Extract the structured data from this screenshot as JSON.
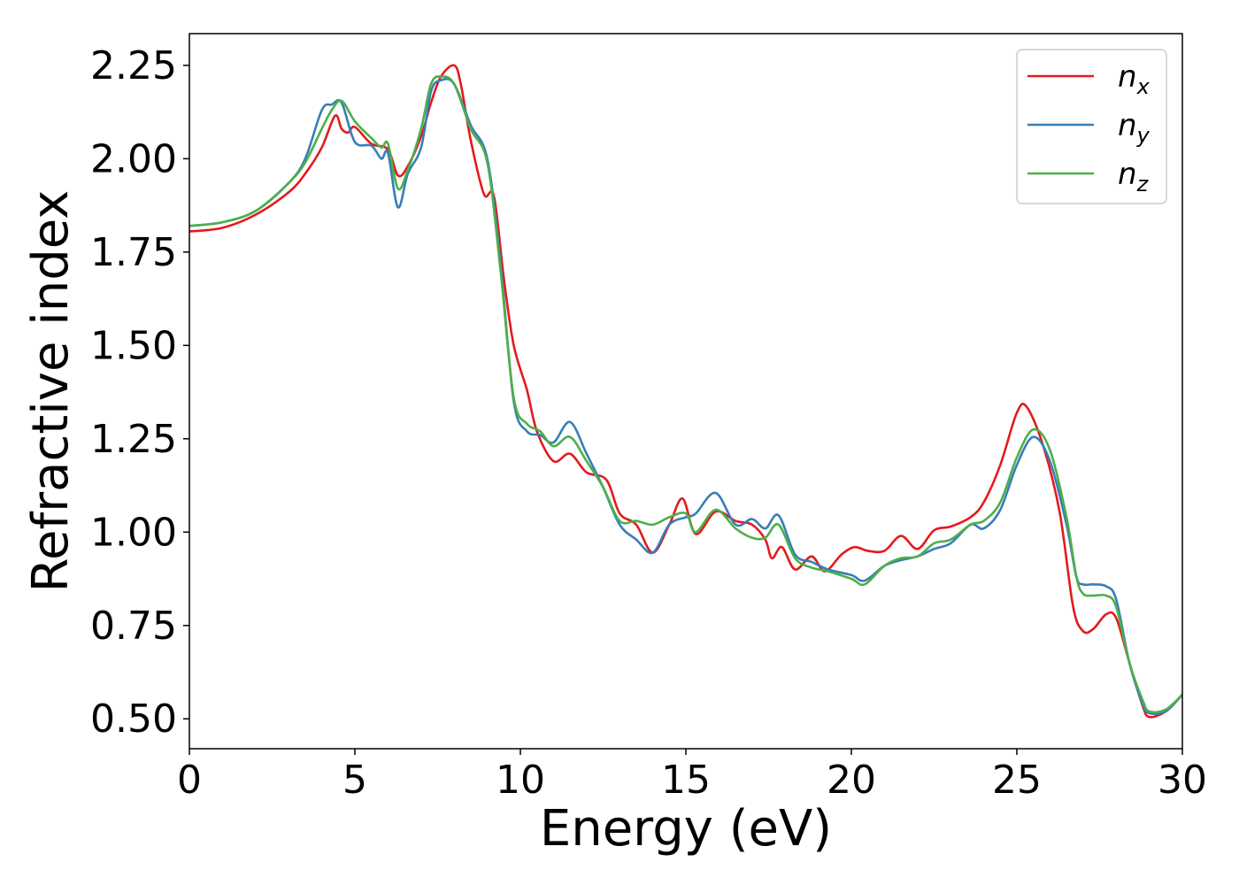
{
  "chart_data": {
    "type": "line",
    "xlabel": "Energy (eV)",
    "ylabel": "Refractive index",
    "xlim": [
      0,
      30
    ],
    "ylim": [
      0.42,
      2.335
    ],
    "xticks": [
      0,
      5,
      10,
      15,
      20,
      25,
      30
    ],
    "xtick_labels": [
      "0",
      "5",
      "10",
      "15",
      "20",
      "25",
      "30"
    ],
    "yticks": [
      0.5,
      0.75,
      1.0,
      1.25,
      1.5,
      1.75,
      2.0,
      2.25
    ],
    "ytick_labels": [
      "0.50",
      "0.75",
      "1.00",
      "1.25",
      "1.50",
      "1.75",
      "2.00",
      "2.25"
    ],
    "grid": false,
    "legend_position": "top-right",
    "series": [
      {
        "name": "n",
        "subscript": "x",
        "color": "#e41a1c",
        "points": [
          [
            0,
            1.805
          ],
          [
            1,
            1.815
          ],
          [
            2,
            1.85
          ],
          [
            3,
            1.91
          ],
          [
            3.5,
            1.96
          ],
          [
            4,
            2.03
          ],
          [
            4.4,
            2.115
          ],
          [
            4.6,
            2.08
          ],
          [
            4.8,
            2.07
          ],
          [
            5,
            2.085
          ],
          [
            5.5,
            2.04
          ],
          [
            6,
            2.025
          ],
          [
            6.3,
            1.955
          ],
          [
            6.6,
            1.98
          ],
          [
            7,
            2.06
          ],
          [
            7.3,
            2.15
          ],
          [
            7.6,
            2.22
          ],
          [
            8,
            2.25
          ],
          [
            8.2,
            2.2
          ],
          [
            8.5,
            2.05
          ],
          [
            8.9,
            1.905
          ],
          [
            9.2,
            1.9
          ],
          [
            9.5,
            1.68
          ],
          [
            9.8,
            1.5
          ],
          [
            10.2,
            1.38
          ],
          [
            10.5,
            1.27
          ],
          [
            11,
            1.19
          ],
          [
            11.5,
            1.21
          ],
          [
            12,
            1.16
          ],
          [
            12.6,
            1.14
          ],
          [
            13,
            1.05
          ],
          [
            13.5,
            1.02
          ],
          [
            14,
            0.945
          ],
          [
            14.5,
            1.02
          ],
          [
            14.9,
            1.09
          ],
          [
            15.3,
            0.995
          ],
          [
            15.9,
            1.055
          ],
          [
            16.5,
            1.03
          ],
          [
            17,
            1.02
          ],
          [
            17.4,
            0.98
          ],
          [
            17.6,
            0.93
          ],
          [
            17.9,
            0.96
          ],
          [
            18.3,
            0.9
          ],
          [
            18.8,
            0.935
          ],
          [
            19.2,
            0.895
          ],
          [
            19.7,
            0.94
          ],
          [
            20.1,
            0.96
          ],
          [
            20.5,
            0.95
          ],
          [
            21,
            0.95
          ],
          [
            21.5,
            0.99
          ],
          [
            22,
            0.955
          ],
          [
            22.5,
            1.005
          ],
          [
            23,
            1.015
          ],
          [
            23.6,
            1.04
          ],
          [
            24,
            1.08
          ],
          [
            24.5,
            1.18
          ],
          [
            25,
            1.32
          ],
          [
            25.3,
            1.335
          ],
          [
            25.8,
            1.23
          ],
          [
            26.3,
            1.05
          ],
          [
            26.7,
            0.8
          ],
          [
            27,
            0.735
          ],
          [
            27.3,
            0.74
          ],
          [
            27.7,
            0.78
          ],
          [
            28,
            0.77
          ],
          [
            28.4,
            0.65
          ],
          [
            28.8,
            0.535
          ],
          [
            29,
            0.505
          ],
          [
            29.5,
            0.52
          ],
          [
            30,
            0.565
          ]
        ]
      },
      {
        "name": "n",
        "subscript": "y",
        "color": "#377eb8",
        "points": [
          [
            0,
            1.82
          ],
          [
            1,
            1.83
          ],
          [
            2,
            1.86
          ],
          [
            3,
            1.935
          ],
          [
            3.5,
            2.0
          ],
          [
            4,
            2.13
          ],
          [
            4.3,
            2.145
          ],
          [
            4.6,
            2.15
          ],
          [
            5,
            2.045
          ],
          [
            5.5,
            2.035
          ],
          [
            5.8,
            2.0
          ],
          [
            6,
            2.015
          ],
          [
            6.3,
            1.87
          ],
          [
            6.6,
            1.96
          ],
          [
            7,
            2.03
          ],
          [
            7.3,
            2.18
          ],
          [
            7.6,
            2.21
          ],
          [
            8,
            2.2
          ],
          [
            8.5,
            2.09
          ],
          [
            9,
            2.0
          ],
          [
            9.4,
            1.72
          ],
          [
            9.8,
            1.35
          ],
          [
            10.2,
            1.27
          ],
          [
            10.6,
            1.26
          ],
          [
            11,
            1.24
          ],
          [
            11.5,
            1.295
          ],
          [
            12,
            1.21
          ],
          [
            12.5,
            1.12
          ],
          [
            13,
            1.02
          ],
          [
            13.5,
            0.98
          ],
          [
            14,
            0.945
          ],
          [
            14.5,
            1.02
          ],
          [
            15,
            1.04
          ],
          [
            15.3,
            1.05
          ],
          [
            15.9,
            1.105
          ],
          [
            16.5,
            1.02
          ],
          [
            17,
            1.035
          ],
          [
            17.4,
            1.01
          ],
          [
            17.8,
            1.045
          ],
          [
            18.3,
            0.94
          ],
          [
            18.8,
            0.92
          ],
          [
            19.3,
            0.9
          ],
          [
            20,
            0.885
          ],
          [
            20.4,
            0.87
          ],
          [
            21,
            0.91
          ],
          [
            21.5,
            0.925
          ],
          [
            22,
            0.935
          ],
          [
            22.5,
            0.955
          ],
          [
            23,
            0.97
          ],
          [
            23.6,
            1.02
          ],
          [
            24,
            1.01
          ],
          [
            24.5,
            1.06
          ],
          [
            25,
            1.18
          ],
          [
            25.5,
            1.255
          ],
          [
            26,
            1.19
          ],
          [
            26.5,
            1.02
          ],
          [
            26.8,
            0.88
          ],
          [
            27,
            0.86
          ],
          [
            27.3,
            0.86
          ],
          [
            27.7,
            0.855
          ],
          [
            28,
            0.82
          ],
          [
            28.4,
            0.65
          ],
          [
            28.8,
            0.54
          ],
          [
            29,
            0.515
          ],
          [
            29.5,
            0.52
          ],
          [
            30,
            0.565
          ]
        ]
      },
      {
        "name": "n",
        "subscript": "z",
        "color": "#4daf4a",
        "points": [
          [
            0,
            1.82
          ],
          [
            1,
            1.83
          ],
          [
            2,
            1.86
          ],
          [
            3,
            1.935
          ],
          [
            3.5,
            1.99
          ],
          [
            4,
            2.08
          ],
          [
            4.3,
            2.13
          ],
          [
            4.6,
            2.155
          ],
          [
            5,
            2.1
          ],
          [
            5.5,
            2.055
          ],
          [
            5.8,
            2.03
          ],
          [
            6,
            2.04
          ],
          [
            6.3,
            1.92
          ],
          [
            6.6,
            1.97
          ],
          [
            7,
            2.08
          ],
          [
            7.3,
            2.2
          ],
          [
            7.6,
            2.22
          ],
          [
            8,
            2.2
          ],
          [
            8.5,
            2.08
          ],
          [
            9,
            1.99
          ],
          [
            9.4,
            1.7
          ],
          [
            9.8,
            1.36
          ],
          [
            10.2,
            1.29
          ],
          [
            10.6,
            1.27
          ],
          [
            11,
            1.23
          ],
          [
            11.5,
            1.255
          ],
          [
            12,
            1.19
          ],
          [
            12.5,
            1.12
          ],
          [
            13,
            1.03
          ],
          [
            13.5,
            1.03
          ],
          [
            14,
            1.02
          ],
          [
            14.5,
            1.04
          ],
          [
            15,
            1.05
          ],
          [
            15.3,
            1.0
          ],
          [
            15.9,
            1.06
          ],
          [
            16.5,
            1.01
          ],
          [
            17,
            0.985
          ],
          [
            17.4,
            0.985
          ],
          [
            17.8,
            1.02
          ],
          [
            18.3,
            0.93
          ],
          [
            18.8,
            0.905
          ],
          [
            19.3,
            0.895
          ],
          [
            20,
            0.875
          ],
          [
            20.4,
            0.86
          ],
          [
            21,
            0.91
          ],
          [
            21.5,
            0.93
          ],
          [
            22,
            0.935
          ],
          [
            22.5,
            0.97
          ],
          [
            23,
            0.98
          ],
          [
            23.6,
            1.02
          ],
          [
            24,
            1.03
          ],
          [
            24.5,
            1.08
          ],
          [
            25,
            1.2
          ],
          [
            25.5,
            1.275
          ],
          [
            26,
            1.22
          ],
          [
            26.5,
            1.04
          ],
          [
            26.8,
            0.88
          ],
          [
            27,
            0.835
          ],
          [
            27.3,
            0.83
          ],
          [
            27.7,
            0.83
          ],
          [
            28,
            0.8
          ],
          [
            28.4,
            0.65
          ],
          [
            28.8,
            0.55
          ],
          [
            29,
            0.52
          ],
          [
            29.5,
            0.525
          ],
          [
            30,
            0.565
          ]
        ]
      }
    ]
  }
}
